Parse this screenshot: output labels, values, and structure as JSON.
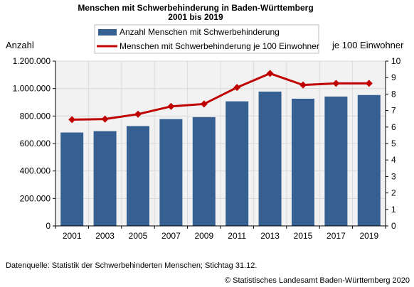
{
  "chart_data": {
    "type": "bar+line",
    "title": "Menschen mit Schwerbehinderung in Baden-Württemberg",
    "subtitle": "2001 bis 2019",
    "y_left_label": "Anzahl",
    "y_right_label": "je 100 Einwohner",
    "categories": [
      "2001",
      "2003",
      "2005",
      "2007",
      "2009",
      "2011",
      "2013",
      "2015",
      "2017",
      "2019"
    ],
    "series": [
      {
        "name": "Anzahl Menschen mit Schwerbehinderung",
        "type": "bar",
        "axis": "left",
        "color": "#366092",
        "values": [
          680000,
          690000,
          727000,
          778000,
          792000,
          907000,
          978000,
          926000,
          942000,
          953000
        ]
      },
      {
        "name": "Menschen mit Schwerbehinderung je 100 Einwohner",
        "type": "line",
        "axis": "right",
        "color": "#c00000",
        "values": [
          6.45,
          6.48,
          6.78,
          7.25,
          7.4,
          8.4,
          9.25,
          8.55,
          8.65,
          8.65
        ]
      }
    ],
    "y_left_ticks": [
      "0",
      "200.000",
      "400.000",
      "600.000",
      "800.000",
      "1.000.000",
      "1.200.000"
    ],
    "y_left_range": [
      0,
      1200000
    ],
    "y_right_ticks": [
      "0",
      "1",
      "2",
      "3",
      "4",
      "5",
      "6",
      "7",
      "8",
      "9",
      "10"
    ],
    "y_right_range": [
      0,
      10
    ],
    "grid": true,
    "legend_position": "top"
  },
  "footer": {
    "source": "Datenquelle: Statistik der  Schwerbehinderten Menschen; Stichtag 31.12.",
    "copyright": "© Statistisches Landesamt Baden-Württemberg 2020"
  },
  "colors": {
    "bar": "#366092",
    "line": "#c00000",
    "grid": "#d9d9d9",
    "plot_bg": "#f2f2f2"
  }
}
